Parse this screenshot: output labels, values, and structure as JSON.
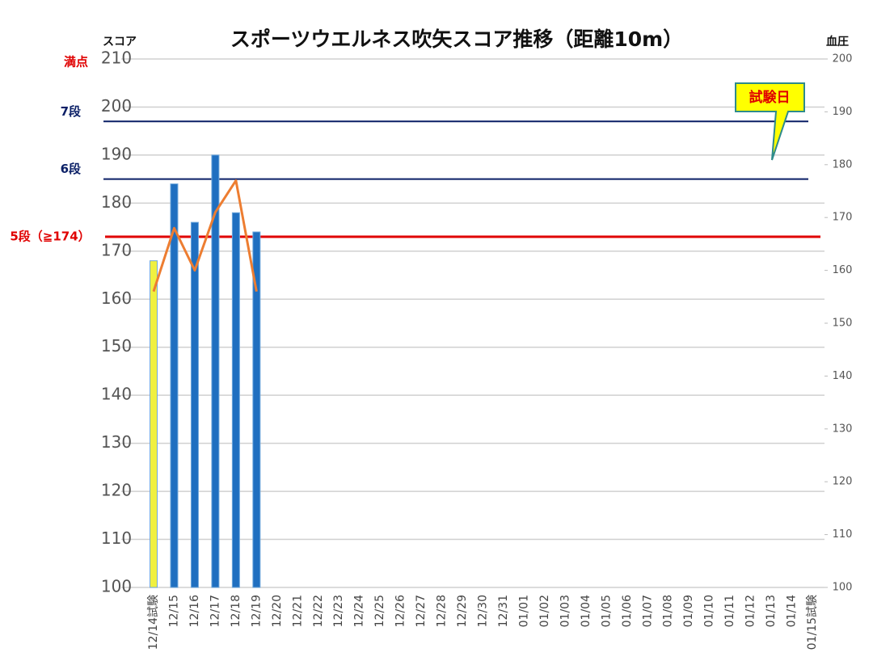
{
  "chart_data": {
    "type": "bar",
    "title": "スポーツウエルネス吹矢スコア推移（距離10m）",
    "y_label": "スコア",
    "y2_label": "血圧",
    "categories": [
      "12/14試験",
      "12/15",
      "12/16",
      "12/17",
      "12/18",
      "12/19",
      "12/20",
      "12/21",
      "12/22",
      "12/23",
      "12/24",
      "12/25",
      "12/26",
      "12/27",
      "12/28",
      "12/29",
      "12/30",
      "12/31",
      "01/01",
      "01/02",
      "01/03",
      "01/04",
      "01/05",
      "01/06",
      "01/07",
      "01/08",
      "01/09",
      "01/10",
      "01/11",
      "01/12",
      "01/13",
      "01/14",
      "01/15試験"
    ],
    "series": [
      {
        "type": "bar",
        "color": "#1f6fc0",
        "highlight_color": "#f0f040",
        "highlight_index": 0,
        "values": [
          168,
          184,
          176,
          190,
          178,
          174,
          null,
          null,
          null,
          null,
          null,
          null,
          null,
          null,
          null,
          null,
          null,
          null,
          null,
          null,
          null,
          null,
          null,
          null,
          null,
          null,
          null,
          null,
          null,
          null,
          null,
          null,
          null
        ]
      },
      {
        "type": "line",
        "axis": "y2",
        "color": "#ed7d31",
        "values": [
          156,
          168,
          160,
          171,
          177,
          156,
          null,
          null,
          null,
          null,
          null,
          null,
          null,
          null,
          null,
          null,
          null,
          null,
          null,
          null,
          null,
          null,
          null,
          null,
          null,
          null,
          null,
          null,
          null,
          null,
          null,
          null,
          null
        ]
      }
    ],
    "ylim": [
      100,
      210
    ],
    "yticks": [
      100,
      110,
      120,
      130,
      140,
      150,
      160,
      170,
      180,
      190,
      200,
      210
    ],
    "y2lim": [
      100,
      200
    ],
    "y2ticks": [
      100,
      110,
      120,
      130,
      140,
      150,
      160,
      170,
      180,
      190,
      200
    ],
    "grid": true,
    "reference_lines": [
      {
        "label": "7段",
        "value": 197,
        "color": "#0a1f66"
      },
      {
        "label": "6段",
        "value": 185,
        "color": "#0a1f66"
      },
      {
        "label": "5段（≧174）",
        "value": 173,
        "color": "#e00000"
      }
    ],
    "annotations": [
      {
        "text": "満点",
        "y": 210,
        "color": "#e00000"
      },
      {
        "text": "試験日",
        "x": "01/14",
        "color": "#e00000"
      }
    ]
  }
}
